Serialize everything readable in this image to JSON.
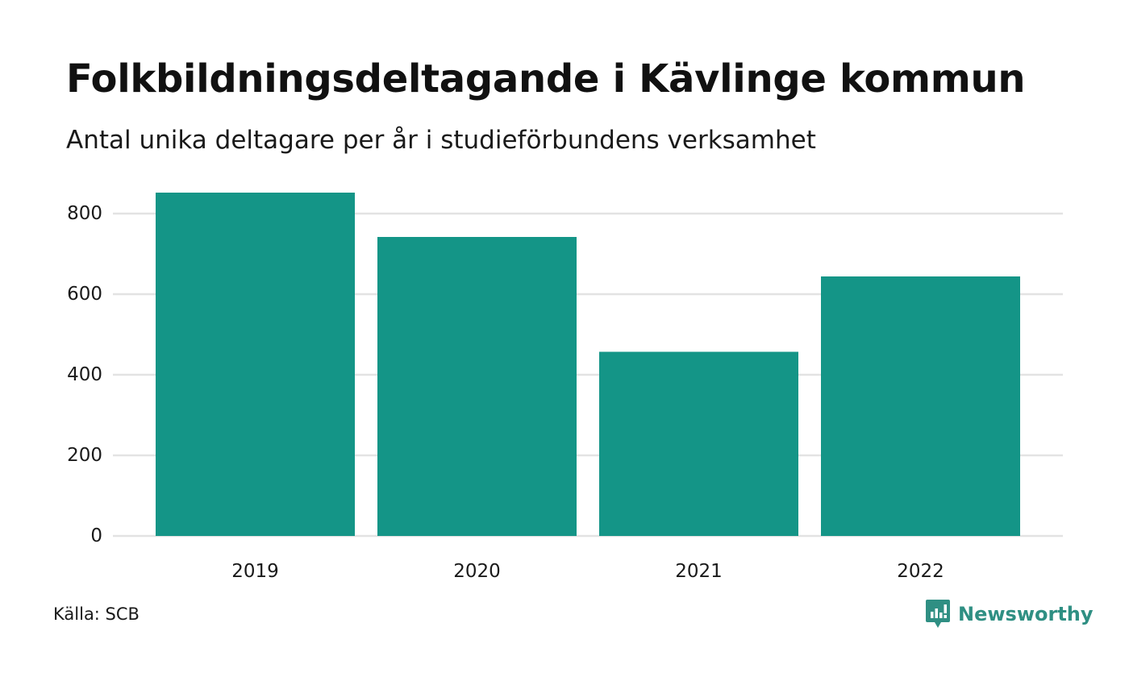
{
  "colors": {
    "bar": "#149587",
    "grid": "#e3e3e3",
    "brand": "#2f8f83"
  },
  "source": "Källa: SCB",
  "brand": {
    "name": "Newsworthy",
    "icon": "bar-chart-speech-bubble-icon"
  },
  "chart_data": {
    "type": "bar",
    "title": "Folkbildningsdeltagande i Kävlinge kommun",
    "subtitle": "Antal unika deltagare per år i studieförbundens verksamhet",
    "xlabel": "",
    "ylabel": "",
    "categories": [
      "2019",
      "2020",
      "2021",
      "2022"
    ],
    "values": [
      852,
      742,
      457,
      644
    ],
    "ylim": [
      0,
      850
    ],
    "yticks": [
      0,
      200,
      400,
      600,
      800
    ],
    "grid": true,
    "legend": "none"
  }
}
